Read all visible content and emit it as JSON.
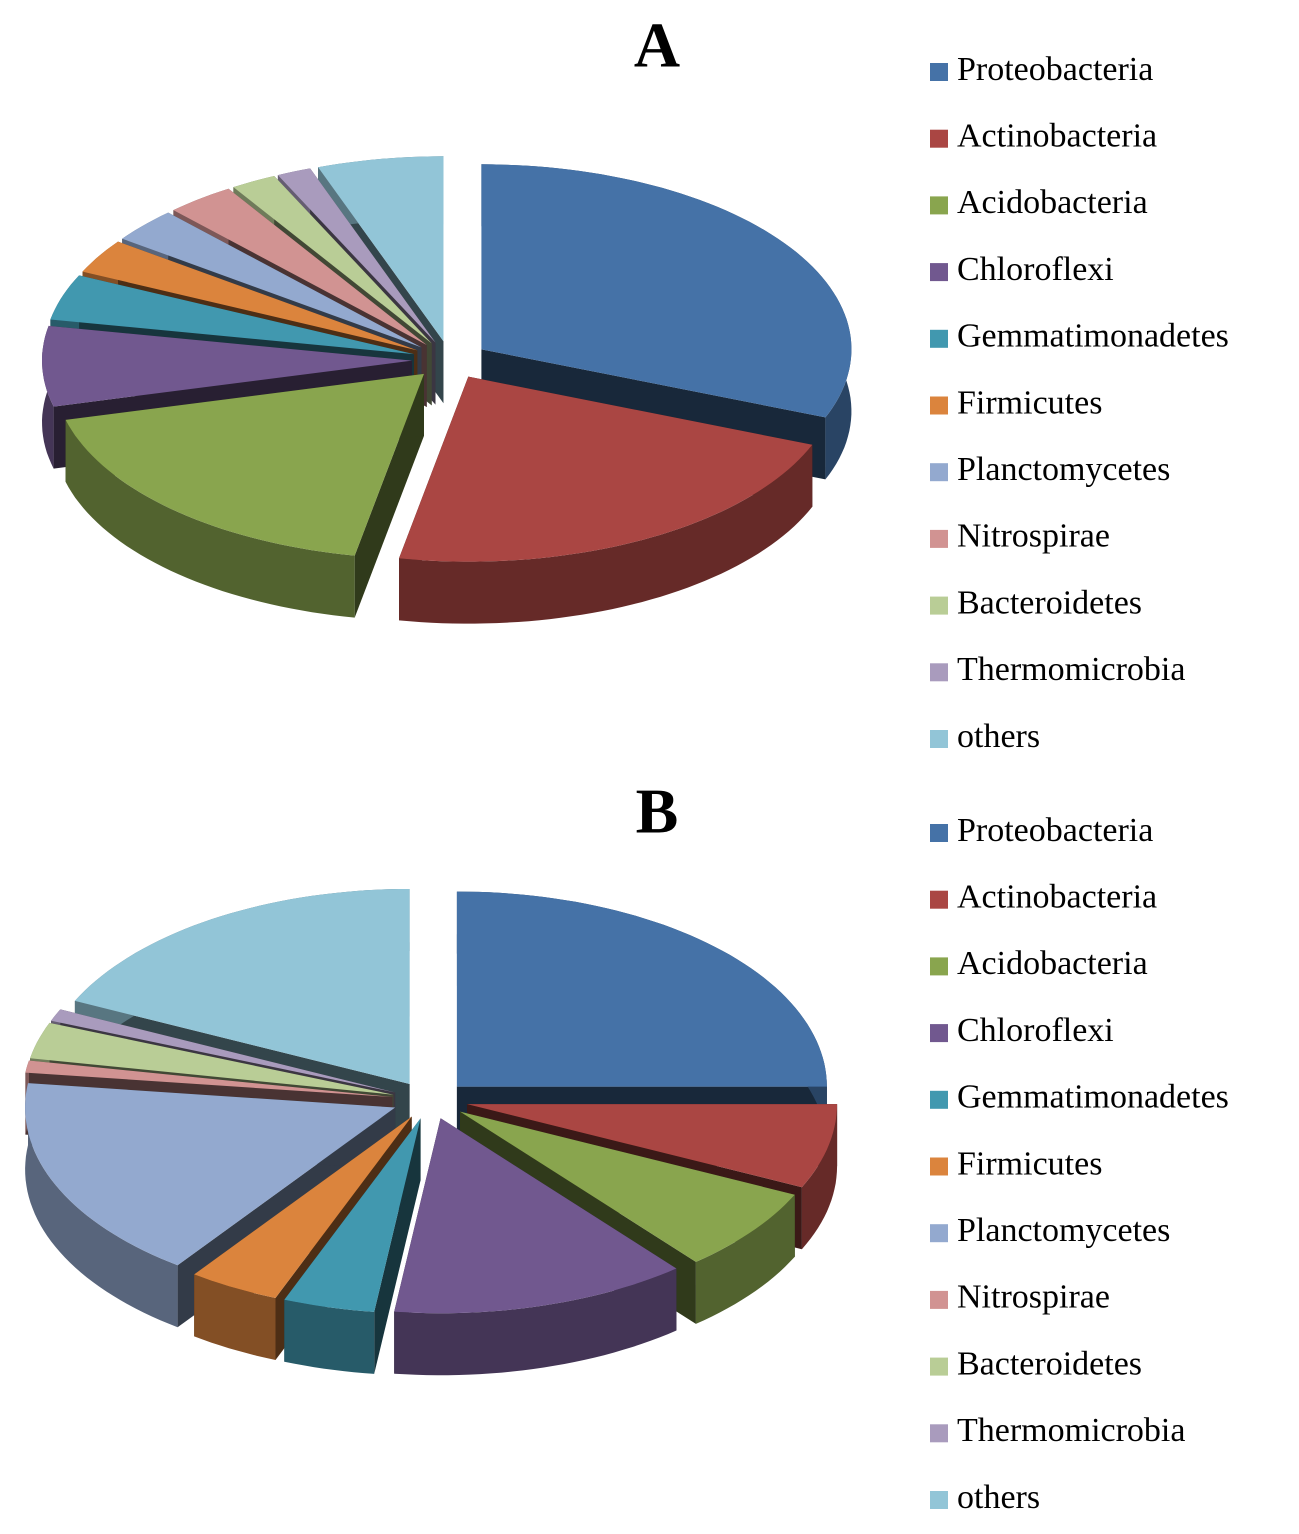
{
  "chart_data": [
    {
      "type": "pie",
      "title": "A",
      "categories": [
        "Proteobacteria",
        "Actinobacteria",
        "Acidobacteria",
        "Chloroflexi",
        "Gemmatimonadetes",
        "Firmicutes",
        "Planctomycetes",
        "Nitrospirae",
        "Bacteroidetes",
        "Thermomicrobia",
        "others"
      ],
      "values": [
        31,
        22,
        18,
        7,
        4,
        3,
        3,
        3,
        2,
        1.5,
        5.5
      ],
      "colors": [
        "#4572a7",
        "#aa4643",
        "#89a54e",
        "#71588f",
        "#4198af",
        "#db843d",
        "#93a9cf",
        "#d19392",
        "#b9cd96",
        "#a99bbd",
        "#92c5d7"
      ],
      "legend": "right"
    },
    {
      "type": "pie",
      "title": "B",
      "categories": [
        "Proteobacteria",
        "Actinobacteria",
        "Acidobacteria",
        "Chloroflexi",
        "Gemmatimonadetes",
        "Firmicutes",
        "Planctomycetes",
        "Nitrospirae",
        "Bacteroidetes",
        "Thermomicrobia",
        "others"
      ],
      "values": [
        25,
        7,
        7,
        13,
        4,
        4,
        17,
        1,
        3,
        1,
        18
      ],
      "colors": [
        "#4572a7",
        "#aa4643",
        "#89a54e",
        "#71588f",
        "#4198af",
        "#db843d",
        "#93a9cf",
        "#d19392",
        "#b9cd96",
        "#a99bbd",
        "#92c5d7"
      ],
      "legend": "right"
    }
  ]
}
